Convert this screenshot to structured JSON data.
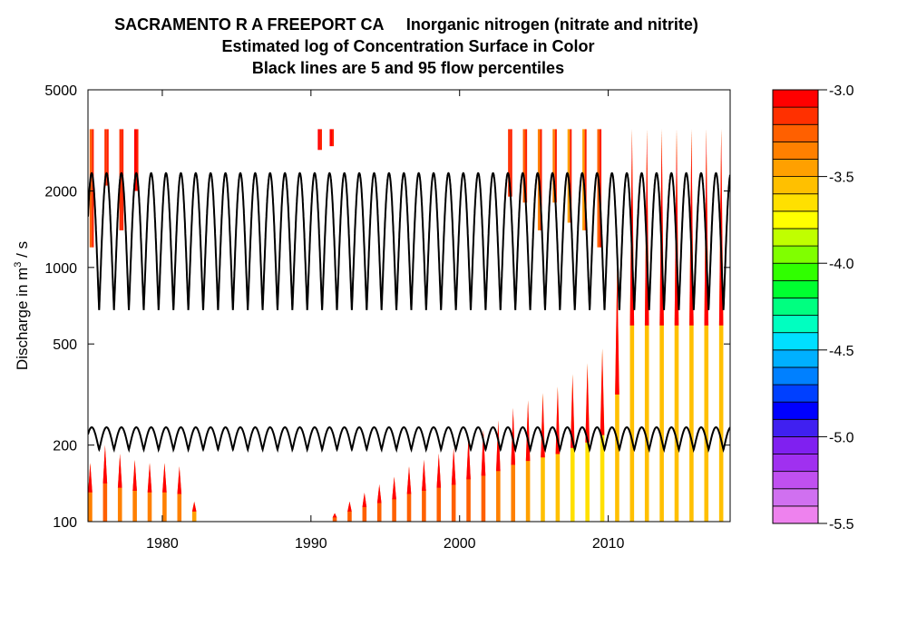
{
  "chart_data": {
    "type": "heatmap",
    "title_lines": [
      "SACRAMENTO R A FREEPORT CA     Inorganic nitrogen (nitrate and nitrite)",
      "Estimated log of Concentration Surface in Color",
      "Black lines are 5 and 95 flow percentiles"
    ],
    "ylabel_prefix": "Discharge in m",
    "ylabel_sup": "3",
    "ylabel_suffix": " / s",
    "y_scale": "log",
    "ylim": [
      100,
      5000
    ],
    "yticks": [
      100,
      200,
      500,
      1000,
      2000,
      5000
    ],
    "ytick_labels": [
      "100",
      "200",
      "500",
      "1000",
      "2000",
      "5000"
    ],
    "xlim": [
      1975,
      2018.2
    ],
    "xticks": [
      1980,
      1990,
      2000,
      2010
    ],
    "xtick_labels": [
      "1980",
      "1990",
      "2000",
      "2010"
    ],
    "legend": {
      "position": "right",
      "range": [
        -5.5,
        -3.0
      ],
      "tick_values": [
        -3.0,
        -3.5,
        -4.0,
        -4.5,
        -5.0,
        -5.5
      ],
      "tick_labels": [
        "-3.0",
        "-3.5",
        "-4.0",
        "-4.5",
        "-5.0",
        "-5.5"
      ],
      "colors_low_to_high": [
        "#ee82ee",
        "#d070f0",
        "#c050f0",
        "#a030f0",
        "#8020f0",
        "#4020f0",
        "#0000ff",
        "#0040ff",
        "#0080ff",
        "#00b0ff",
        "#00e0ff",
        "#00ffc0",
        "#00ff80",
        "#00ff30",
        "#30ff00",
        "#80ff00",
        "#c0ff00",
        "#ffff00",
        "#ffe000",
        "#ffc000",
        "#ffa000",
        "#ff8000",
        "#ff6000",
        "#ff3000",
        "#ff0000"
      ]
    },
    "flow_percentile_lines": {
      "p95": {
        "min": 680,
        "max": 2350,
        "cycles_per_year": 1
      },
      "p5": {
        "min": 192,
        "max": 235,
        "cycles_per_year": 1
      }
    },
    "concentration_spikes": [
      {
        "year": 1975.15,
        "q_top": 170,
        "level": -3.1
      },
      {
        "year": 1976.15,
        "q_top": 200,
        "level": -3.05
      },
      {
        "year": 1977.15,
        "q_top": 185,
        "level": -3.1
      },
      {
        "year": 1978.15,
        "q_top": 175,
        "level": -3.1
      },
      {
        "year": 1979.15,
        "q_top": 170,
        "level": -3.1
      },
      {
        "year": 1980.15,
        "q_top": 170,
        "level": -3.15
      },
      {
        "year": 1981.15,
        "q_top": 165,
        "level": -3.15
      },
      {
        "year": 1982.15,
        "q_top": 120,
        "level": -3.2
      },
      {
        "year": 1991.6,
        "q_top": 108,
        "level": -3.05
      },
      {
        "year": 1992.6,
        "q_top": 120,
        "level": -3.05
      },
      {
        "year": 1993.6,
        "q_top": 130,
        "level": -3.05
      },
      {
        "year": 1994.6,
        "q_top": 140,
        "level": -3.05
      },
      {
        "year": 1995.6,
        "q_top": 150,
        "level": -3.05
      },
      {
        "year": 1996.6,
        "q_top": 165,
        "level": -3.05
      },
      {
        "year": 1997.6,
        "q_top": 175,
        "level": -3.05
      },
      {
        "year": 1998.6,
        "q_top": 185,
        "level": -3.05
      },
      {
        "year": 1999.6,
        "q_top": 195,
        "level": -3.05
      },
      {
        "year": 2000.6,
        "q_top": 215,
        "level": -3.05
      },
      {
        "year": 2001.6,
        "q_top": 230,
        "level": -3.05
      },
      {
        "year": 2002.6,
        "q_top": 250,
        "level": -3.1
      },
      {
        "year": 2003.6,
        "q_top": 280,
        "level": -3.1
      },
      {
        "year": 2004.6,
        "q_top": 300,
        "level": -3.2
      },
      {
        "year": 2005.6,
        "q_top": 320,
        "level": -3.3
      },
      {
        "year": 2006.6,
        "q_top": 340,
        "level": -3.35
      },
      {
        "year": 2007.6,
        "q_top": 380,
        "level": -3.4
      },
      {
        "year": 2008.6,
        "q_top": 420,
        "level": -3.45
      },
      {
        "year": 2009.6,
        "q_top": 480,
        "level": -3.4
      },
      {
        "year": 2010.6,
        "q_top": 1000,
        "level": -3.35
      },
      {
        "year": 2011.6,
        "q_top": 3500,
        "level": -3.35
      },
      {
        "year": 2012.6,
        "q_top": 3500,
        "level": -3.3
      },
      {
        "year": 2013.6,
        "q_top": 3500,
        "level": -3.3
      },
      {
        "year": 2014.6,
        "q_top": 3500,
        "level": -3.3
      },
      {
        "year": 2015.6,
        "q_top": 3500,
        "level": -3.3
      },
      {
        "year": 2016.6,
        "q_top": 3500,
        "level": -3.3
      },
      {
        "year": 2017.6,
        "q_top": 3500,
        "level": -3.3
      }
    ],
    "high_flow_spikes": [
      {
        "year": 1975.25,
        "q_bottom": 1200,
        "level": -3.3
      },
      {
        "year": 1976.25,
        "q_bottom": 2100,
        "level": -3.2
      },
      {
        "year": 1977.25,
        "q_bottom": 1400,
        "level": -3.2
      },
      {
        "year": 1978.25,
        "q_bottom": 2000,
        "level": -3.1
      },
      {
        "year": 1990.6,
        "q_bottom": 2900,
        "level": -3.05
      },
      {
        "year": 1991.4,
        "q_bottom": 3000,
        "level": -3.05
      },
      {
        "year": 2003.4,
        "q_bottom": 1900,
        "level": -3.2
      },
      {
        "year": 2004.4,
        "q_bottom": 1800,
        "level": -3.3
      },
      {
        "year": 2005.4,
        "q_bottom": 1400,
        "level": -3.4
      },
      {
        "year": 2006.4,
        "q_bottom": 1800,
        "level": -3.4
      },
      {
        "year": 2007.4,
        "q_bottom": 1500,
        "level": -3.45
      },
      {
        "year": 2008.4,
        "q_bottom": 1400,
        "level": -3.45
      },
      {
        "year": 2009.4,
        "q_bottom": 1200,
        "level": -3.3
      }
    ]
  }
}
